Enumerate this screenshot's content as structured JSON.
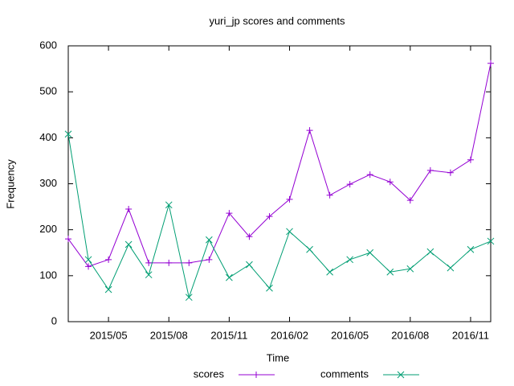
{
  "chart_data": {
    "type": "line",
    "title": "yuri_jp scores and comments",
    "x_label": "Time",
    "y_label": "Frequency",
    "x": [
      "2015/03",
      "2015/04",
      "2015/05",
      "2015/06",
      "2015/07",
      "2015/08",
      "2015/09",
      "2015/10",
      "2015/11",
      "2015/12",
      "2016/01",
      "2016/02",
      "2016/03",
      "2016/04",
      "2016/05",
      "2016/06",
      "2016/07",
      "2016/08",
      "2016/09",
      "2016/10",
      "2016/11",
      "2016/12"
    ],
    "xlim": [
      "2015/03",
      "2016/12"
    ],
    "xticks": [
      "2015/05",
      "2015/08",
      "2015/11",
      "2016/02",
      "2016/05",
      "2016/08",
      "2016/11"
    ],
    "ylim": [
      0,
      600
    ],
    "yticks": [
      0,
      100,
      200,
      300,
      400,
      500,
      600
    ],
    "legend": "bottom",
    "series": [
      {
        "name": "scores",
        "color": "#9400d3",
        "marker": "+",
        "values": [
          180,
          120,
          135,
          245,
          128,
          128,
          128,
          135,
          236,
          185,
          229,
          266,
          416,
          275,
          299,
          320,
          304,
          264,
          329,
          324,
          352,
          562
        ]
      },
      {
        "name": "comments",
        "color": "#009e73",
        "marker": "x",
        "values": [
          408,
          135,
          70,
          168,
          102,
          254,
          53,
          178,
          96,
          124,
          73,
          196,
          157,
          108,
          135,
          150,
          108,
          115,
          152,
          117,
          157,
          175
        ]
      }
    ]
  }
}
